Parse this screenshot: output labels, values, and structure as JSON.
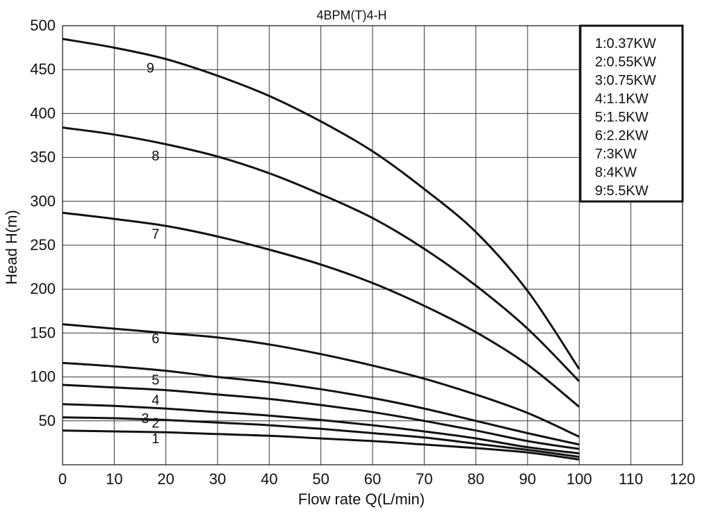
{
  "chart_data": {
    "type": "line",
    "title": "4BPM(T)4-H",
    "xlabel": "Flow rate Q(L/min)",
    "ylabel": "Head H(m)",
    "xlim": [
      0,
      120
    ],
    "ylim": [
      0,
      500
    ],
    "x_ticks": [
      0,
      10,
      20,
      30,
      40,
      50,
      60,
      70,
      80,
      90,
      100,
      110,
      120
    ],
    "y_ticks": [
      50,
      100,
      150,
      200,
      250,
      300,
      350,
      400,
      450,
      500
    ],
    "grid": true,
    "legend_position": "top-right",
    "legend": [
      "1:0.37KW",
      "2:0.55KW",
      "3:0.75KW",
      "4:1.1KW",
      "5:1.5KW",
      "6:2.2KW",
      "7:3KW",
      "8:4KW",
      "9:5.5KW"
    ],
    "x": [
      0,
      10,
      20,
      30,
      40,
      50,
      60,
      70,
      80,
      90,
      100
    ],
    "series": [
      {
        "label": "1",
        "label_at": [
          18,
          30
        ],
        "values": [
          39,
          38,
          37,
          35,
          33,
          30,
          27,
          23,
          19,
          14,
          6
        ]
      },
      {
        "label": "2",
        "label_at": [
          18,
          48
        ],
        "values": [
          54,
          53,
          51,
          48,
          45,
          41,
          36,
          31,
          24,
          17,
          9
        ]
      },
      {
        "label": "3",
        "label_at": [
          16,
          53
        ],
        "values": [
          69,
          67,
          64,
          60,
          56,
          51,
          45,
          38,
          30,
          20,
          13
        ]
      },
      {
        "label": "4",
        "label_at": [
          18,
          74
        ],
        "values": [
          91,
          88,
          85,
          80,
          75,
          68,
          60,
          50,
          39,
          27,
          18
        ]
      },
      {
        "label": "5",
        "label_at": [
          18,
          97
        ],
        "values": [
          116,
          112,
          107,
          100,
          94,
          86,
          76,
          64,
          50,
          36,
          23
        ]
      },
      {
        "label": "6",
        "label_at": [
          18,
          144
        ],
        "values": [
          160,
          155,
          150,
          145,
          137,
          126,
          113,
          98,
          80,
          59,
          32
        ]
      },
      {
        "label": "7",
        "label_at": [
          18,
          263
        ],
        "values": [
          287,
          280,
          272,
          260,
          245,
          228,
          207,
          181,
          151,
          114,
          66
        ]
      },
      {
        "label": "8",
        "label_at": [
          18,
          352
        ],
        "values": [
          384,
          376,
          365,
          351,
          332,
          308,
          281,
          246,
          204,
          155,
          95
        ]
      },
      {
        "label": "9",
        "label_at": [
          17,
          452
        ],
        "values": [
          485,
          475,
          462,
          443,
          420,
          391,
          357,
          314,
          265,
          198,
          109
        ]
      }
    ]
  }
}
